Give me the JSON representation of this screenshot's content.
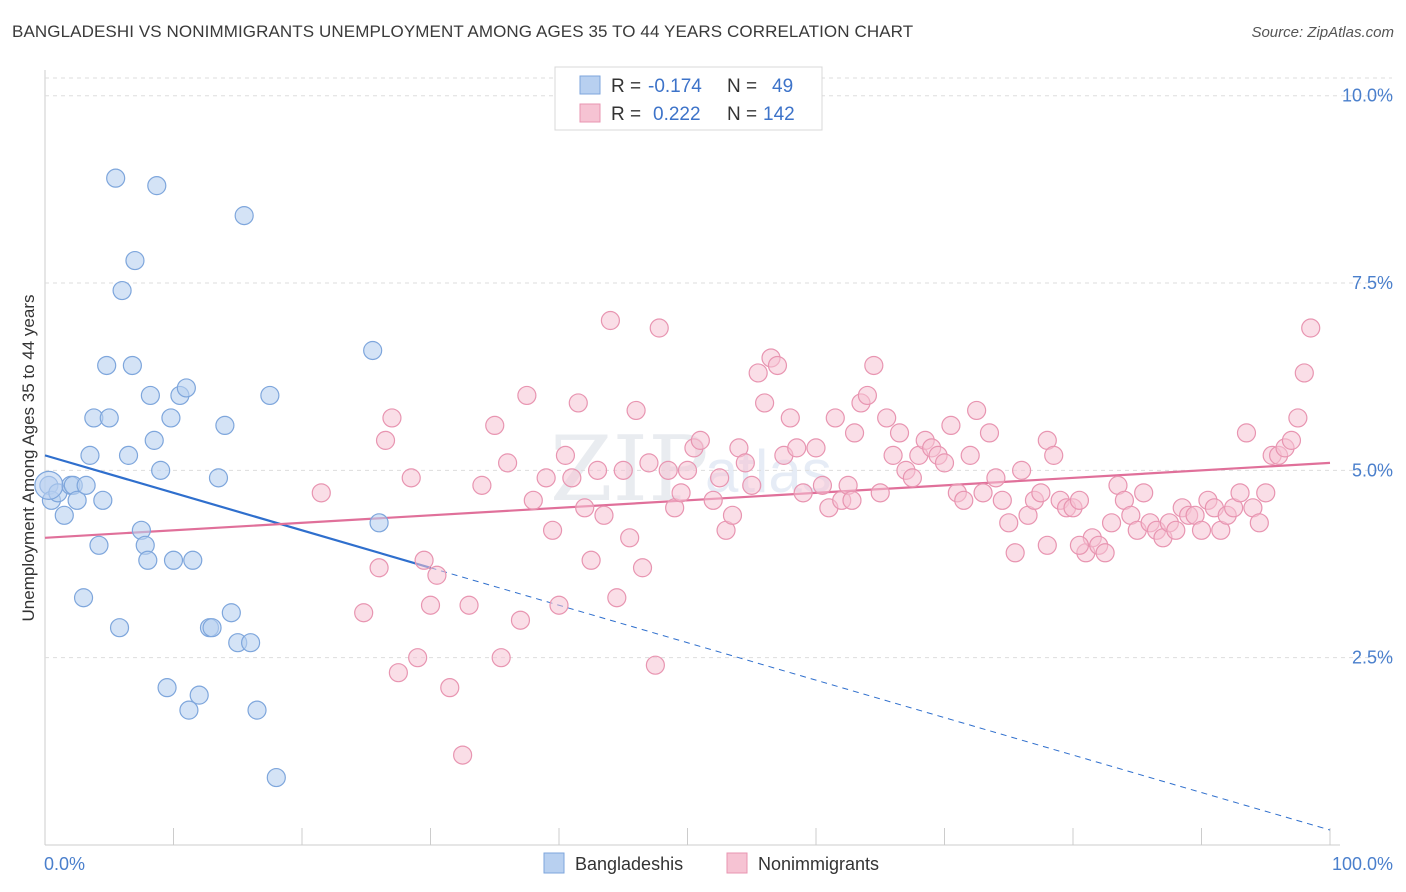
{
  "title": "BANGLADESHI VS NONIMMIGRANTS UNEMPLOYMENT AMONG AGES 35 TO 44 YEARS CORRELATION CHART",
  "source": "Source: ZipAtlas.com",
  "watermark": {
    "zip": "ZIP",
    "atlas": "atlas"
  },
  "colors": {
    "blue_fill": "#b8d0f0",
    "blue_stroke": "#7ea6dc",
    "blue_line": "#2f6fcd",
    "pink_fill": "#f6c3d3",
    "pink_stroke": "#e895b1",
    "pink_line": "#e0709a",
    "tick_text": "#4a7fcc"
  },
  "legend": {
    "row1": {
      "r_label": "R =",
      "r_value": "-0.174",
      "n_label": "N =",
      "n_value": "49"
    },
    "row2": {
      "r_label": "R =",
      "r_value": "0.222",
      "n_label": "N =",
      "n_value": "142"
    }
  },
  "bottom_legend": {
    "series1": "Bangladeshis",
    "series2": "Nonimmigrants"
  },
  "chart_data": {
    "type": "scatter",
    "title": "BANGLADESHI VS NONIMMIGRANTS UNEMPLOYMENT AMONG AGES 35 TO 44 YEARS CORRELATION CHART",
    "xlabel": "",
    "ylabel": "Unemployment Among Ages 35 to 44 years",
    "xlim": [
      0,
      100
    ],
    "ylim": [
      0,
      10.25
    ],
    "x_tick_labels": [
      "0.0%",
      "100.0%"
    ],
    "y_ticks": [
      2.5,
      5.0,
      7.5,
      10.0
    ],
    "y_tick_labels": [
      "2.5%",
      "5.0%",
      "7.5%",
      "10.0%"
    ],
    "series": [
      {
        "name": "Bangladeshis",
        "R": -0.174,
        "N": 49,
        "trend": {
          "x0": 0,
          "y0": 5.2,
          "x1": 30,
          "y1": 3.7,
          "dash_x1": 100,
          "dash_y1": 0.2
        },
        "points": [
          [
            0.3,
            4.8
          ],
          [
            0.5,
            4.6
          ],
          [
            1.0,
            4.7
          ],
          [
            1.5,
            4.4
          ],
          [
            2.0,
            4.8
          ],
          [
            2.2,
            4.8
          ],
          [
            2.5,
            4.6
          ],
          [
            3.2,
            4.8
          ],
          [
            3.5,
            5.2
          ],
          [
            3.8,
            5.7
          ],
          [
            4.2,
            4.0
          ],
          [
            4.5,
            4.6
          ],
          [
            4.8,
            6.4
          ],
          [
            5.0,
            5.7
          ],
          [
            5.8,
            2.9
          ],
          [
            6.0,
            7.4
          ],
          [
            6.5,
            5.2
          ],
          [
            6.8,
            6.4
          ],
          [
            7.0,
            7.8
          ],
          [
            7.5,
            4.2
          ],
          [
            7.8,
            4.0
          ],
          [
            8.0,
            3.8
          ],
          [
            8.2,
            6.0
          ],
          [
            8.5,
            5.4
          ],
          [
            9.0,
            5.0
          ],
          [
            9.5,
            2.1
          ],
          [
            9.8,
            5.7
          ],
          [
            10.0,
            3.8
          ],
          [
            10.5,
            6.0
          ],
          [
            11.0,
            6.1
          ],
          [
            11.2,
            1.8
          ],
          [
            11.5,
            3.8
          ],
          [
            12.0,
            2.0
          ],
          [
            12.8,
            2.9
          ],
          [
            13.0,
            2.9
          ],
          [
            13.5,
            4.9
          ],
          [
            14.0,
            5.6
          ],
          [
            14.5,
            3.1
          ],
          [
            15.0,
            2.7
          ],
          [
            15.5,
            8.4
          ],
          [
            16.0,
            2.7
          ],
          [
            16.5,
            1.8
          ],
          [
            17.5,
            6.0
          ],
          [
            18.0,
            0.9
          ],
          [
            3.0,
            3.3
          ],
          [
            5.5,
            8.9
          ],
          [
            8.7,
            8.8
          ],
          [
            25.5,
            6.6
          ],
          [
            26.0,
            4.3
          ]
        ]
      },
      {
        "name": "Nonimmigrants",
        "R": 0.222,
        "N": 142,
        "trend": {
          "x0": 0,
          "y0": 4.1,
          "x1": 100,
          "y1": 5.1
        },
        "points": [
          [
            21.5,
            4.7
          ],
          [
            24.8,
            3.1
          ],
          [
            26.0,
            3.7
          ],
          [
            26.5,
            5.4
          ],
          [
            27.0,
            5.7
          ],
          [
            27.5,
            2.3
          ],
          [
            28.5,
            4.9
          ],
          [
            29.0,
            2.5
          ],
          [
            29.5,
            3.8
          ],
          [
            30.0,
            3.2
          ],
          [
            30.5,
            3.6
          ],
          [
            31.5,
            2.1
          ],
          [
            32.5,
            1.2
          ],
          [
            33.0,
            3.2
          ],
          [
            34.0,
            4.8
          ],
          [
            35.0,
            5.6
          ],
          [
            35.5,
            2.5
          ],
          [
            36.0,
            5.1
          ],
          [
            37.0,
            3.0
          ],
          [
            37.5,
            6.0
          ],
          [
            38.0,
            4.6
          ],
          [
            39.0,
            4.9
          ],
          [
            39.5,
            4.2
          ],
          [
            40.0,
            3.2
          ],
          [
            40.5,
            5.2
          ],
          [
            41.0,
            4.9
          ],
          [
            41.5,
            5.9
          ],
          [
            42.0,
            4.5
          ],
          [
            42.5,
            3.8
          ],
          [
            43.5,
            4.4
          ],
          [
            44.0,
            7.0
          ],
          [
            44.5,
            3.3
          ],
          [
            45.0,
            5.0
          ],
          [
            45.5,
            4.1
          ],
          [
            46.0,
            5.8
          ],
          [
            46.5,
            3.7
          ],
          [
            47.0,
            5.1
          ],
          [
            47.5,
            2.4
          ],
          [
            47.8,
            6.9
          ],
          [
            48.5,
            5.0
          ],
          [
            49.0,
            4.5
          ],
          [
            49.5,
            4.7
          ],
          [
            50.0,
            5.0
          ],
          [
            50.5,
            5.3
          ],
          [
            51.0,
            5.4
          ],
          [
            52.0,
            4.6
          ],
          [
            52.5,
            4.9
          ],
          [
            53.0,
            4.2
          ],
          [
            54.0,
            5.3
          ],
          [
            54.5,
            5.1
          ],
          [
            55.0,
            4.8
          ],
          [
            55.5,
            6.3
          ],
          [
            56.0,
            5.9
          ],
          [
            56.5,
            6.5
          ],
          [
            57.0,
            6.4
          ],
          [
            57.5,
            5.2
          ],
          [
            58.0,
            5.7
          ],
          [
            58.5,
            5.3
          ],
          [
            59.0,
            4.7
          ],
          [
            60.0,
            5.3
          ],
          [
            60.5,
            4.8
          ],
          [
            61.0,
            4.5
          ],
          [
            61.5,
            5.7
          ],
          [
            62.0,
            4.6
          ],
          [
            62.5,
            4.8
          ],
          [
            63.0,
            5.5
          ],
          [
            63.5,
            5.9
          ],
          [
            64.0,
            6.0
          ],
          [
            64.5,
            6.4
          ],
          [
            65.0,
            4.7
          ],
          [
            65.5,
            5.7
          ],
          [
            66.0,
            5.2
          ],
          [
            66.5,
            5.5
          ],
          [
            67.0,
            5.0
          ],
          [
            67.5,
            4.9
          ],
          [
            68.0,
            5.2
          ],
          [
            68.5,
            5.4
          ],
          [
            69.0,
            5.3
          ],
          [
            69.5,
            5.2
          ],
          [
            70.0,
            5.1
          ],
          [
            70.5,
            5.6
          ],
          [
            71.0,
            4.7
          ],
          [
            71.5,
            4.6
          ],
          [
            72.0,
            5.2
          ],
          [
            72.5,
            5.8
          ],
          [
            73.0,
            4.7
          ],
          [
            73.5,
            5.5
          ],
          [
            74.0,
            4.9
          ],
          [
            74.5,
            4.6
          ],
          [
            75.0,
            4.3
          ],
          [
            75.5,
            3.9
          ],
          [
            76.0,
            5.0
          ],
          [
            76.5,
            4.4
          ],
          [
            77.0,
            4.6
          ],
          [
            77.5,
            4.7
          ],
          [
            78.0,
            5.4
          ],
          [
            78.5,
            5.2
          ],
          [
            79.0,
            4.6
          ],
          [
            79.5,
            4.5
          ],
          [
            80.0,
            4.5
          ],
          [
            80.5,
            4.6
          ],
          [
            81.0,
            3.9
          ],
          [
            81.5,
            4.1
          ],
          [
            82.0,
            4.0
          ],
          [
            82.5,
            3.9
          ],
          [
            83.0,
            4.3
          ],
          [
            83.5,
            4.8
          ],
          [
            84.0,
            4.6
          ],
          [
            84.5,
            4.4
          ],
          [
            85.0,
            4.2
          ],
          [
            85.5,
            4.7
          ],
          [
            86.0,
            4.3
          ],
          [
            86.5,
            4.2
          ],
          [
            87.0,
            4.1
          ],
          [
            87.5,
            4.3
          ],
          [
            88.0,
            4.2
          ],
          [
            88.5,
            4.5
          ],
          [
            89.0,
            4.4
          ],
          [
            89.5,
            4.4
          ],
          [
            90.0,
            4.2
          ],
          [
            90.5,
            4.6
          ],
          [
            91.0,
            4.5
          ],
          [
            91.5,
            4.2
          ],
          [
            92.0,
            4.4
          ],
          [
            92.5,
            4.5
          ],
          [
            93.0,
            4.7
          ],
          [
            93.5,
            5.5
          ],
          [
            94.0,
            4.5
          ],
          [
            94.5,
            4.3
          ],
          [
            95.0,
            4.7
          ],
          [
            95.5,
            5.2
          ],
          [
            96.0,
            5.2
          ],
          [
            96.5,
            5.3
          ],
          [
            97.0,
            5.4
          ],
          [
            97.5,
            5.7
          ],
          [
            98.0,
            6.3
          ],
          [
            98.5,
            6.9
          ],
          [
            80.5,
            4.0
          ],
          [
            78.0,
            4.0
          ],
          [
            62.8,
            4.6
          ],
          [
            53.5,
            4.4
          ],
          [
            43.0,
            5.0
          ]
        ]
      }
    ]
  }
}
